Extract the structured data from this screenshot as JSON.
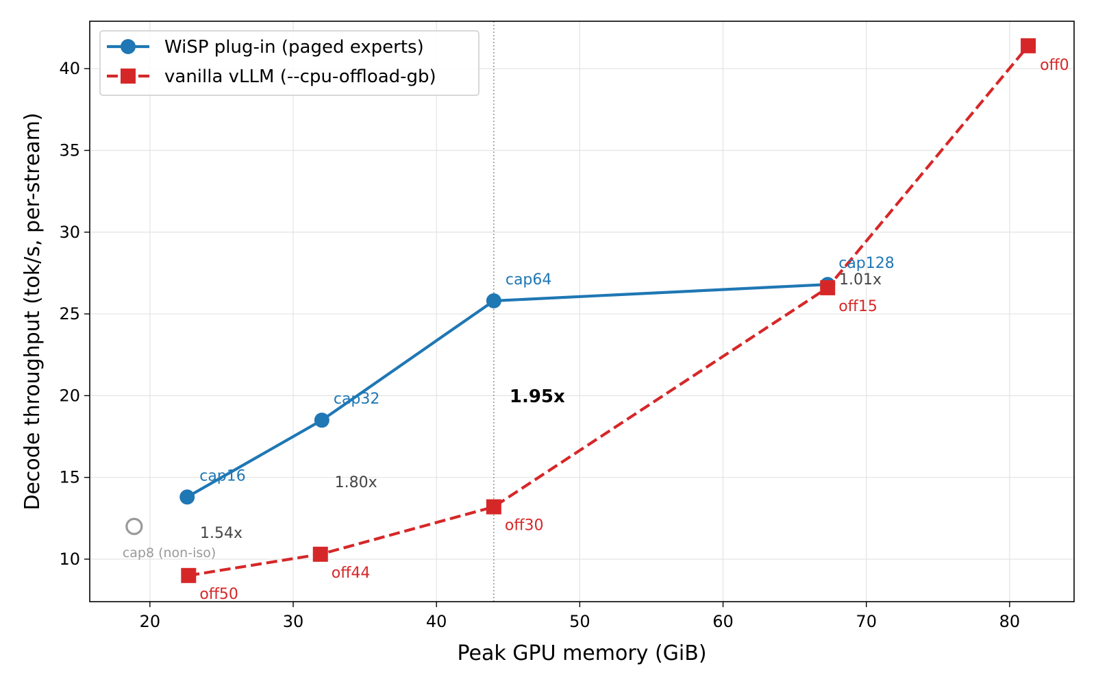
{
  "chart_data": {
    "type": "line",
    "title": "",
    "xlabel": "Peak GPU memory (GiB)",
    "ylabel": "Decode throughput (tok/s, per-stream)",
    "xlim": [
      15.8,
      84.5
    ],
    "ylim": [
      7.4,
      42.9
    ],
    "xticks": [
      20,
      30,
      40,
      50,
      60,
      70,
      80
    ],
    "yticks": [
      10,
      15,
      20,
      25,
      30,
      35,
      40
    ],
    "grid": true,
    "legend_position": "top-left",
    "series": [
      {
        "name": "WiSP plug-in (paged experts)",
        "color": "#1f77b4",
        "style": "solid",
        "marker": "circle",
        "points": [
          {
            "x": 22.6,
            "y": 13.8,
            "label": "cap16"
          },
          {
            "x": 32.0,
            "y": 18.5,
            "label": "cap32"
          },
          {
            "x": 44.0,
            "y": 25.8,
            "label": "cap64"
          },
          {
            "x": 67.3,
            "y": 26.8,
            "label": "cap128"
          }
        ]
      },
      {
        "name": "vanilla vLLM (--cpu-offload-gb)",
        "color": "#d62728",
        "style": "dashed",
        "marker": "square",
        "points": [
          {
            "x": 22.7,
            "y": 9.0,
            "label": "off50"
          },
          {
            "x": 31.9,
            "y": 10.3,
            "label": "off44"
          },
          {
            "x": 44.0,
            "y": 13.2,
            "label": "off30"
          },
          {
            "x": 67.3,
            "y": 26.6,
            "label": "off15"
          },
          {
            "x": 81.3,
            "y": 41.4,
            "label": "off0"
          }
        ]
      }
    ],
    "extra_points": [
      {
        "x": 18.9,
        "y": 12.0,
        "label": "cap8 (non-iso)",
        "color": "#999999",
        "marker": "hollow-circle"
      }
    ],
    "annotations": [
      {
        "text": "1.54x",
        "x": 23.5,
        "y": 11.3,
        "bold": false
      },
      {
        "text": "1.80x",
        "x": 32.9,
        "y": 14.4,
        "bold": false
      },
      {
        "text": "1.95x",
        "x": 45.1,
        "y": 19.6,
        "bold": true
      },
      {
        "text": "1.01x",
        "x": 68.1,
        "y": 26.8,
        "bold": false
      }
    ],
    "reference_line": {
      "x": 44.0,
      "style": "dotted",
      "color": "#888888"
    }
  }
}
